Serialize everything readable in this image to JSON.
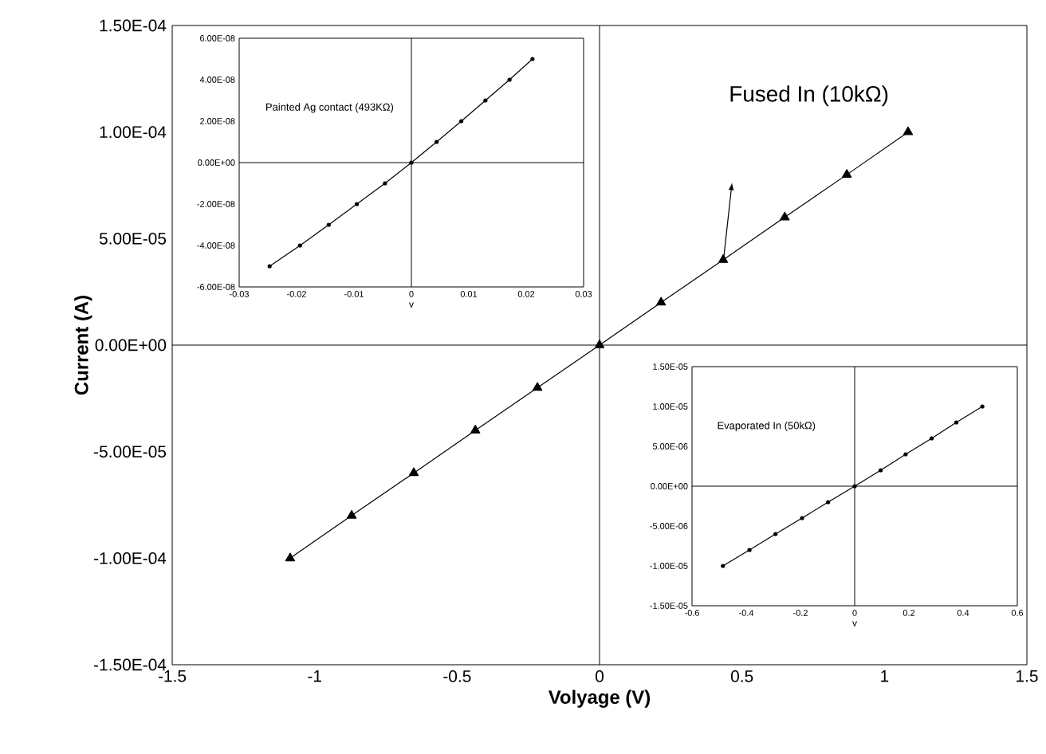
{
  "chart_data": [
    {
      "type": "line",
      "xlabel": "Volyage (V)",
      "ylabel": "Current (A)",
      "xlim": [
        -1.5,
        1.5
      ],
      "xticks": [
        -1.5,
        -1,
        -0.5,
        0,
        0.5,
        1,
        1.5
      ],
      "ylim": [
        -0.00015,
        0.00015
      ],
      "yticks": [
        {
          "value": -0.00015,
          "label": "-1.50E-04"
        },
        {
          "value": -0.0001,
          "label": "-1.00E-04"
        },
        {
          "value": -5e-05,
          "label": "-5.00E-05"
        },
        {
          "value": 0,
          "label": "0.00E+00"
        },
        {
          "value": 5e-05,
          "label": "5.00E-05"
        },
        {
          "value": 0.0001,
          "label": "1.00E-04"
        },
        {
          "value": 0.00015,
          "label": "1.50E-04"
        }
      ],
      "series": [
        {
          "color": "#000000",
          "x": [
            -1.086,
            -0.87,
            -0.652,
            -0.436,
            -0.218,
            0,
            0.216,
            0.434,
            0.65,
            0.868,
            1.083
          ],
          "values": [
            -0.0001,
            -8e-05,
            -6e-05,
            -4e-05,
            -2e-05,
            0,
            2e-05,
            4e-05,
            6e-05,
            8e-05,
            0.0001
          ]
        }
      ],
      "marker": "triangle",
      "line_style": "solid",
      "annotations": [
        "Fused In (10kΩ)"
      ]
    },
    {
      "type": "line",
      "xlabel": "v",
      "xlim": [
        -0.03,
        0.03
      ],
      "xticks": [
        -0.03,
        -0.02,
        -0.01,
        0,
        0.01,
        0.02,
        0.03
      ],
      "ylim": [
        -6e-08,
        6e-08
      ],
      "yticks": [
        {
          "value": -6e-08,
          "label": "-6.00E-08"
        },
        {
          "value": -4e-08,
          "label": "-4.00E-08"
        },
        {
          "value": -2e-08,
          "label": "-2.00E-08"
        },
        {
          "value": 0,
          "label": "0.00E+00"
        },
        {
          "value": 2e-08,
          "label": "2.00E-08"
        },
        {
          "value": 4e-08,
          "label": "4.00E-08"
        },
        {
          "value": 6e-08,
          "label": "6.00E-08"
        }
      ],
      "series": [
        {
          "color": "#000000",
          "x": [
            -0.0247,
            -0.0194,
            -0.0144,
            -0.0095,
            -0.0046,
            0,
            0.0044,
            0.0087,
            0.0129,
            0.0171,
            0.0211
          ],
          "values": [
            -5e-08,
            -4e-08,
            -3e-08,
            -2e-08,
            -1e-08,
            0,
            1e-08,
            2e-08,
            3e-08,
            4e-08,
            5e-08
          ]
        }
      ],
      "marker": "circle",
      "line_style": "solid",
      "annotations": [
        "Painted Ag contact (493KΩ)"
      ]
    },
    {
      "type": "line",
      "xlabel": "v",
      "xlim": [
        -0.6,
        0.6
      ],
      "xticks": [
        -0.6,
        -0.4,
        -0.2,
        0,
        0.2,
        0.4,
        0.6
      ],
      "ylim": [
        -1.5e-05,
        1.5e-05
      ],
      "yticks": [
        {
          "value": -1.5e-05,
          "label": "-1.50E-05"
        },
        {
          "value": -1e-05,
          "label": "-1.00E-05"
        },
        {
          "value": -5e-06,
          "label": "-5.00E-06"
        },
        {
          "value": 0,
          "label": "0.00E+00"
        },
        {
          "value": 5e-06,
          "label": "5.00E-06"
        },
        {
          "value": 1e-05,
          "label": "1.00E-05"
        },
        {
          "value": 1.5e-05,
          "label": "1.50E-05"
        }
      ],
      "series": [
        {
          "color": "#000000",
          "x": [
            -0.486,
            -0.388,
            -0.292,
            -0.194,
            -0.098,
            0,
            0.096,
            0.188,
            0.284,
            0.375,
            0.471
          ],
          "values": [
            -1e-05,
            -8e-06,
            -6e-06,
            -4e-06,
            -2e-06,
            0,
            2e-06,
            4e-06,
            6e-06,
            8e-06,
            1e-05
          ]
        }
      ],
      "marker": "circle",
      "line_style": "solid",
      "annotations": [
        "Evaporated In (50kΩ)"
      ]
    }
  ]
}
